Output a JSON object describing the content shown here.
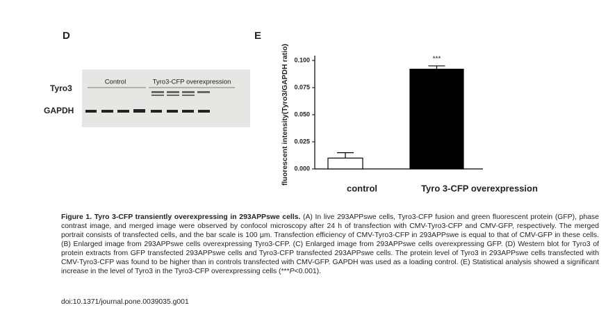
{
  "panel_d": {
    "label": "D",
    "lane_groups": [
      "Control",
      "Tyro3-CFP overexpression"
    ],
    "rows": [
      "Tyro3",
      "GAPDH"
    ]
  },
  "panel_e": {
    "label": "E"
  },
  "chart_data": {
    "type": "bar",
    "y_label": "fluorescent intensity(Tyro3/GAPDH ratio)",
    "categories": [
      "control",
      "Tyro 3-CFP overexpression"
    ],
    "values": [
      0.01,
      0.092
    ],
    "errors": [
      0.005,
      0.003
    ],
    "colors": [
      "#ffffff",
      "#000000"
    ],
    "annotation": "***",
    "ylim": [
      0,
      0.1
    ],
    "yticks": [
      {
        "value": 0,
        "label": "0.000"
      },
      {
        "value": 0.025,
        "label": "0.025"
      },
      {
        "value": 0.05,
        "label": "0.050"
      },
      {
        "value": 0.075,
        "label": "0.075"
      },
      {
        "value": 0.1,
        "label": "0.100"
      }
    ]
  },
  "caption": {
    "title": "Figure 1. Tyro 3-CFP transiently overexpressing in 293APPswe cells.",
    "body": "(A) In live 293APPswe cells, Tyro3-CFP fusion and green fluorescent protein (GFP), phase contrast image, and merged image were observed by confocol microscopy after 24 h of transfection with CMV-Tyro3-CFP and CMV-GFP, respectively. The merged portrait consists of transfected cells, and the bar scale is 100 μm. Transfection efficiency of CMV-Tyro3-CFP in 293APPswe is equal to that of CMV-GFP in these cells. (B) Enlarged image from 293APPswe cells overexpressing Tyro3-CFP. (C) Enlarged image from 293APPswe cells overexpressing GFP. (D) Western blot for Tyro3 of protein extracts from GFP transfected 293APPswe cells and Tyro3-CFP transfected 293APPswe cells. The protein level of Tyro3 in 293APPswe cells transfected with CMV-Tyro3-CFP was found to be higher than in controls transfected with CMV-GFP. GAPDH was used as a loading control. (E) Statistical analysis showed a significant increase in the level of Tyro3 in the Tyro3-CFP overexpressing cells (***",
    "italic": "P",
    "end": "<0.001).",
    "doi": "doi:10.1371/journal.pone.0039035.g001"
  }
}
